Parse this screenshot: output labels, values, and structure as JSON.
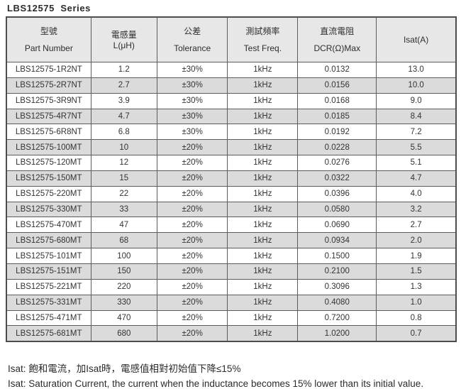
{
  "page": {
    "title": "LBS12575  Series"
  },
  "table": {
    "columns": [
      {
        "zh": "型號",
        "en": "Part Number"
      },
      {
        "zh": "電感量",
        "en": "L(μH)"
      },
      {
        "zh": "公差",
        "en": "Tolerance"
      },
      {
        "zh": "測試頻率",
        "en": "Test Freq."
      },
      {
        "zh": "直流電阻",
        "en": "DCR(Ω)Max"
      },
      {
        "zh": "",
        "en": "Isat(A)"
      }
    ],
    "rows": [
      [
        "LBS12575-1R2NT",
        "1.2",
        "±30%",
        "1kHz",
        "0.0132",
        "13.0"
      ],
      [
        "LBS12575-2R7NT",
        "2.7",
        "±30%",
        "1kHz",
        "0.0156",
        "10.0"
      ],
      [
        "LBS12575-3R9NT",
        "3.9",
        "±30%",
        "1kHz",
        "0.0168",
        "9.0"
      ],
      [
        "LBS12575-4R7NT",
        "4.7",
        "±30%",
        "1kHz",
        "0.0185",
        "8.4"
      ],
      [
        "LBS12575-6R8NT",
        "6.8",
        "±30%",
        "1kHz",
        "0.0192",
        "7.2"
      ],
      [
        "LBS12575-100MT",
        "10",
        "±20%",
        "1kHz",
        "0.0228",
        "5.5"
      ],
      [
        "LBS12575-120MT",
        "12",
        "±20%",
        "1kHz",
        "0.0276",
        "5.1"
      ],
      [
        "LBS12575-150MT",
        "15",
        "±20%",
        "1kHz",
        "0.0322",
        "4.7"
      ],
      [
        "LBS12575-220MT",
        "22",
        "±20%",
        "1kHz",
        "0.0396",
        "4.0"
      ],
      [
        "LBS12575-330MT",
        "33",
        "±20%",
        "1kHz",
        "0.0580",
        "3.2"
      ],
      [
        "LBS12575-470MT",
        "47",
        "±20%",
        "1kHz",
        "0.0690",
        "2.7"
      ],
      [
        "LBS12575-680MT",
        "68",
        "±20%",
        "1kHz",
        "0.0934",
        "2.0"
      ],
      [
        "LBS12575-101MT",
        "100",
        "±20%",
        "1kHz",
        "0.1500",
        "1.9"
      ],
      [
        "LBS12575-151MT",
        "150",
        "±20%",
        "1kHz",
        "0.2100",
        "1.5"
      ],
      [
        "LBS12575-221MT",
        "220",
        "±20%",
        "1kHz",
        "0.3096",
        "1.3"
      ],
      [
        "LBS12575-331MT",
        "330",
        "±20%",
        "1kHz",
        "0.4080",
        "1.0"
      ],
      [
        "LBS12575-471MT",
        "470",
        "±20%",
        "1kHz",
        "0.7200",
        "0.8"
      ],
      [
        "LBS12575-681MT",
        "680",
        "±20%",
        "1kHz",
        "1.0200",
        "0.7"
      ]
    ],
    "column_widths_pct": [
      18.8,
      14.7,
      15.7,
      15.6,
      17.5,
      17.7
    ]
  },
  "notes": {
    "zh": "Isat: 飽和電流，加Isat時，電感值相對初始值下降≤15%",
    "en": "Isat: Saturation Current, the current when the inductance becomes 15% lower than its initial value."
  },
  "colors": {
    "header_bg": "#e7e7e7",
    "row_alt_bg": "#dbdbdb",
    "border": "#5c5c5c",
    "outer_border": "#4d4d4d",
    "text": "#333333"
  }
}
